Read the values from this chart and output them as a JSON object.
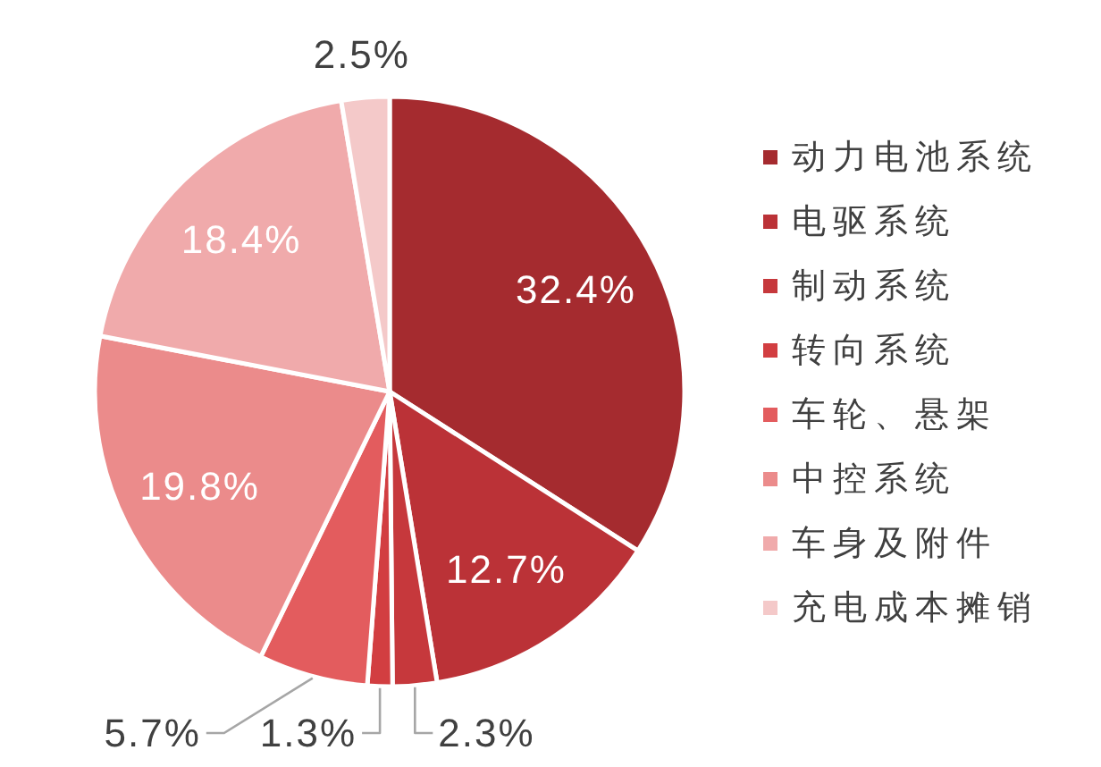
{
  "chart_data": {
    "type": "pie",
    "categories": [
      "动力电池系统",
      "电驱系统",
      "制动系统",
      "转向系统",
      "车轮、悬架",
      "中控系统",
      "车身及附件",
      "充电成本摊销"
    ],
    "values": [
      32.4,
      12.7,
      2.3,
      1.3,
      5.7,
      19.8,
      18.4,
      2.5
    ],
    "value_labels": [
      "32.4%",
      "12.7%",
      "2.3%",
      "1.3%",
      "5.7%",
      "19.8%",
      "18.4%",
      "2.5%"
    ],
    "colors": [
      "#a52b2f",
      "#bb3237",
      "#c6383c",
      "#d23e41",
      "#e35c5e",
      "#eb8b8b",
      "#f0aaab",
      "#f4c9c9"
    ],
    "legend": "right"
  }
}
